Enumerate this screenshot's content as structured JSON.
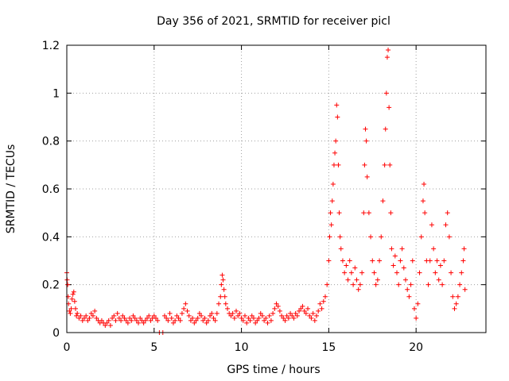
{
  "chart_data": {
    "type": "scatter",
    "title": "Day 356 of 2021, SRMTID for receiver picl",
    "xlabel": "GPS time / hours",
    "ylabel": "SRMTID / TECUs",
    "xlim": [
      0,
      24
    ],
    "ylim": [
      0,
      1.2
    ],
    "xticks": [
      0,
      5,
      10,
      15,
      20
    ],
    "yticks": [
      0,
      0.2,
      0.4,
      0.6,
      0.8,
      1,
      1.2
    ],
    "xtick_labels": [
      "0",
      "5",
      "10",
      "15",
      "20"
    ],
    "ytick_labels": [
      "0",
      "0.2",
      "0.4",
      "0.6",
      "0.8",
      "1",
      "1.2"
    ],
    "grid": true,
    "marker": "+",
    "color": "#ff0000",
    "series": [
      {
        "name": "SRMTID",
        "points": [
          [
            0.0,
            0.25
          ],
          [
            0.02,
            0.22
          ],
          [
            0.05,
            0.2
          ],
          [
            0.08,
            0.15
          ],
          [
            0.1,
            0.12
          ],
          [
            0.15,
            0.09
          ],
          [
            0.2,
            0.08
          ],
          [
            0.25,
            0.1
          ],
          [
            0.3,
            0.14
          ],
          [
            0.35,
            0.16
          ],
          [
            0.4,
            0.17
          ],
          [
            0.45,
            0.13
          ],
          [
            0.5,
            0.1
          ],
          [
            0.55,
            0.07
          ],
          [
            0.6,
            0.08
          ],
          [
            0.7,
            0.06
          ],
          [
            0.8,
            0.07
          ],
          [
            0.9,
            0.05
          ],
          [
            1.0,
            0.06
          ],
          [
            1.1,
            0.07
          ],
          [
            1.2,
            0.05
          ],
          [
            1.3,
            0.06
          ],
          [
            1.4,
            0.08
          ],
          [
            1.5,
            0.07
          ],
          [
            1.6,
            0.09
          ],
          [
            1.7,
            0.06
          ],
          [
            1.8,
            0.05
          ],
          [
            1.9,
            0.04
          ],
          [
            2.0,
            0.05
          ],
          [
            2.1,
            0.04
          ],
          [
            2.2,
            0.03
          ],
          [
            2.3,
            0.04
          ],
          [
            2.4,
            0.05
          ],
          [
            2.5,
            0.03
          ],
          [
            2.6,
            0.06
          ],
          [
            2.7,
            0.07
          ],
          [
            2.8,
            0.05
          ],
          [
            2.9,
            0.08
          ],
          [
            3.0,
            0.06
          ],
          [
            3.1,
            0.05
          ],
          [
            3.2,
            0.07
          ],
          [
            3.3,
            0.06
          ],
          [
            3.4,
            0.05
          ],
          [
            3.5,
            0.04
          ],
          [
            3.6,
            0.06
          ],
          [
            3.7,
            0.05
          ],
          [
            3.8,
            0.07
          ],
          [
            3.9,
            0.06
          ],
          [
            4.0,
            0.05
          ],
          [
            4.1,
            0.04
          ],
          [
            4.2,
            0.06
          ],
          [
            4.3,
            0.05
          ],
          [
            4.4,
            0.04
          ],
          [
            4.5,
            0.05
          ],
          [
            4.6,
            0.06
          ],
          [
            4.7,
            0.07
          ],
          [
            4.8,
            0.05
          ],
          [
            4.9,
            0.06
          ],
          [
            5.0,
            0.07
          ],
          [
            5.1,
            0.06
          ],
          [
            5.2,
            0.05
          ],
          [
            5.3,
            0.0
          ],
          [
            5.5,
            0.0
          ],
          [
            5.6,
            0.07
          ],
          [
            5.7,
            0.06
          ],
          [
            5.8,
            0.05
          ],
          [
            5.9,
            0.08
          ],
          [
            6.0,
            0.06
          ],
          [
            6.1,
            0.04
          ],
          [
            6.2,
            0.05
          ],
          [
            6.3,
            0.07
          ],
          [
            6.4,
            0.06
          ],
          [
            6.5,
            0.05
          ],
          [
            6.6,
            0.08
          ],
          [
            6.7,
            0.1
          ],
          [
            6.8,
            0.12
          ],
          [
            6.9,
            0.09
          ],
          [
            7.0,
            0.07
          ],
          [
            7.1,
            0.05
          ],
          [
            7.2,
            0.06
          ],
          [
            7.3,
            0.04
          ],
          [
            7.4,
            0.05
          ],
          [
            7.5,
            0.06
          ],
          [
            7.6,
            0.08
          ],
          [
            7.7,
            0.07
          ],
          [
            7.8,
            0.05
          ],
          [
            7.9,
            0.06
          ],
          [
            8.0,
            0.04
          ],
          [
            8.1,
            0.05
          ],
          [
            8.2,
            0.07
          ],
          [
            8.3,
            0.08
          ],
          [
            8.4,
            0.06
          ],
          [
            8.5,
            0.05
          ],
          [
            8.6,
            0.08
          ],
          [
            8.7,
            0.12
          ],
          [
            8.8,
            0.15
          ],
          [
            8.85,
            0.2
          ],
          [
            8.9,
            0.24
          ],
          [
            8.95,
            0.22
          ],
          [
            9.0,
            0.18
          ],
          [
            9.05,
            0.15
          ],
          [
            9.1,
            0.12
          ],
          [
            9.2,
            0.1
          ],
          [
            9.3,
            0.08
          ],
          [
            9.4,
            0.07
          ],
          [
            9.5,
            0.08
          ],
          [
            9.6,
            0.06
          ],
          [
            9.7,
            0.09
          ],
          [
            9.8,
            0.07
          ],
          [
            9.9,
            0.08
          ],
          [
            10.0,
            0.06
          ],
          [
            10.1,
            0.05
          ],
          [
            10.2,
            0.07
          ],
          [
            10.3,
            0.04
          ],
          [
            10.4,
            0.06
          ],
          [
            10.5,
            0.05
          ],
          [
            10.6,
            0.07
          ],
          [
            10.7,
            0.06
          ],
          [
            10.8,
            0.04
          ],
          [
            10.9,
            0.05
          ],
          [
            11.0,
            0.06
          ],
          [
            11.1,
            0.08
          ],
          [
            11.2,
            0.07
          ],
          [
            11.3,
            0.05
          ],
          [
            11.4,
            0.06
          ],
          [
            11.5,
            0.04
          ],
          [
            11.6,
            0.07
          ],
          [
            11.7,
            0.05
          ],
          [
            11.8,
            0.08
          ],
          [
            11.9,
            0.1
          ],
          [
            12.0,
            0.12
          ],
          [
            12.1,
            0.11
          ],
          [
            12.2,
            0.09
          ],
          [
            12.3,
            0.07
          ],
          [
            12.4,
            0.06
          ],
          [
            12.5,
            0.05
          ],
          [
            12.6,
            0.07
          ],
          [
            12.7,
            0.06
          ],
          [
            12.8,
            0.08
          ],
          [
            12.9,
            0.07
          ],
          [
            13.0,
            0.06
          ],
          [
            13.1,
            0.08
          ],
          [
            13.2,
            0.07
          ],
          [
            13.3,
            0.09
          ],
          [
            13.4,
            0.1
          ],
          [
            13.5,
            0.11
          ],
          [
            13.6,
            0.09
          ],
          [
            13.7,
            0.08
          ],
          [
            13.8,
            0.1
          ],
          [
            13.9,
            0.07
          ],
          [
            14.0,
            0.06
          ],
          [
            14.1,
            0.08
          ],
          [
            14.2,
            0.05
          ],
          [
            14.3,
            0.07
          ],
          [
            14.4,
            0.09
          ],
          [
            14.5,
            0.12
          ],
          [
            14.6,
            0.1
          ],
          [
            14.7,
            0.13
          ],
          [
            14.8,
            0.15
          ],
          [
            14.9,
            0.2
          ],
          [
            15.0,
            0.3
          ],
          [
            15.05,
            0.4
          ],
          [
            15.1,
            0.5
          ],
          [
            15.15,
            0.45
          ],
          [
            15.2,
            0.55
          ],
          [
            15.25,
            0.62
          ],
          [
            15.3,
            0.7
          ],
          [
            15.35,
            0.75
          ],
          [
            15.4,
            0.8
          ],
          [
            15.45,
            0.95
          ],
          [
            15.5,
            0.9
          ],
          [
            15.55,
            0.7
          ],
          [
            15.6,
            0.5
          ],
          [
            15.65,
            0.4
          ],
          [
            15.7,
            0.35
          ],
          [
            15.8,
            0.3
          ],
          [
            15.9,
            0.25
          ],
          [
            16.0,
            0.28
          ],
          [
            16.1,
            0.22
          ],
          [
            16.2,
            0.3
          ],
          [
            16.3,
            0.25
          ],
          [
            16.4,
            0.2
          ],
          [
            16.5,
            0.27
          ],
          [
            16.6,
            0.22
          ],
          [
            16.7,
            0.18
          ],
          [
            16.8,
            0.2
          ],
          [
            16.9,
            0.25
          ],
          [
            17.0,
            0.5
          ],
          [
            17.05,
            0.7
          ],
          [
            17.1,
            0.85
          ],
          [
            17.15,
            0.8
          ],
          [
            17.2,
            0.65
          ],
          [
            17.3,
            0.5
          ],
          [
            17.4,
            0.4
          ],
          [
            17.5,
            0.3
          ],
          [
            17.6,
            0.25
          ],
          [
            17.7,
            0.2
          ],
          [
            17.8,
            0.22
          ],
          [
            17.9,
            0.3
          ],
          [
            18.0,
            0.4
          ],
          [
            18.1,
            0.55
          ],
          [
            18.2,
            0.7
          ],
          [
            18.25,
            0.85
          ],
          [
            18.3,
            1.0
          ],
          [
            18.35,
            1.15
          ],
          [
            18.4,
            1.18
          ],
          [
            18.45,
            0.94
          ],
          [
            18.5,
            0.7
          ],
          [
            18.55,
            0.5
          ],
          [
            18.6,
            0.35
          ],
          [
            18.7,
            0.28
          ],
          [
            18.8,
            0.32
          ],
          [
            18.9,
            0.25
          ],
          [
            19.0,
            0.2
          ],
          [
            19.1,
            0.3
          ],
          [
            19.2,
            0.35
          ],
          [
            19.3,
            0.27
          ],
          [
            19.4,
            0.22
          ],
          [
            19.5,
            0.18
          ],
          [
            19.6,
            0.15
          ],
          [
            19.7,
            0.2
          ],
          [
            19.8,
            0.3
          ],
          [
            19.9,
            0.1
          ],
          [
            20.0,
            0.06
          ],
          [
            20.1,
            0.12
          ],
          [
            20.2,
            0.25
          ],
          [
            20.3,
            0.4
          ],
          [
            20.4,
            0.55
          ],
          [
            20.45,
            0.62
          ],
          [
            20.5,
            0.5
          ],
          [
            20.6,
            0.3
          ],
          [
            20.7,
            0.2
          ],
          [
            20.8,
            0.3
          ],
          [
            20.9,
            0.45
          ],
          [
            21.0,
            0.35
          ],
          [
            21.1,
            0.25
          ],
          [
            21.2,
            0.3
          ],
          [
            21.3,
            0.22
          ],
          [
            21.4,
            0.28
          ],
          [
            21.5,
            0.2
          ],
          [
            21.6,
            0.3
          ],
          [
            21.7,
            0.45
          ],
          [
            21.8,
            0.5
          ],
          [
            21.9,
            0.4
          ],
          [
            22.0,
            0.25
          ],
          [
            22.1,
            0.15
          ],
          [
            22.2,
            0.1
          ],
          [
            22.3,
            0.12
          ],
          [
            22.4,
            0.15
          ],
          [
            22.5,
            0.2
          ],
          [
            22.6,
            0.25
          ],
          [
            22.7,
            0.3
          ],
          [
            22.75,
            0.35
          ],
          [
            22.8,
            0.18
          ]
        ]
      }
    ]
  }
}
